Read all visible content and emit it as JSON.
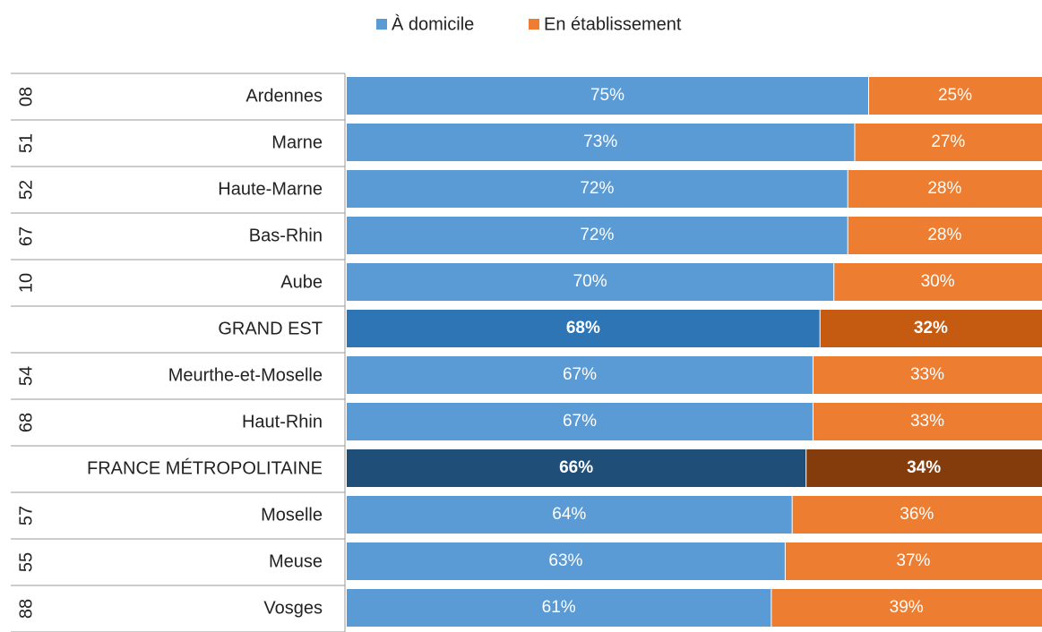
{
  "chart_data": {
    "type": "stacked-bar-horizontal",
    "categories": [
      "Ardennes",
      "Marne",
      "Haute-Marne",
      "Bas-Rhin",
      "Aube",
      "GRAND EST",
      "Meurthe-et-Moselle",
      "Haut-Rhin",
      "FRANCE MÉTROPOLITAINE",
      "Moselle",
      "Meuse",
      "Vosges"
    ],
    "codes": [
      "08",
      "51",
      "52",
      "67",
      "10",
      null,
      "54",
      "68",
      null,
      "57",
      "55",
      "88"
    ],
    "xlim": [
      0,
      100
    ],
    "series": [
      {
        "name": "À domicile",
        "color": "#5b9bd5",
        "point_colors": [
          "#5b9bd5",
          "#5b9bd5",
          "#5b9bd5",
          "#5b9bd5",
          "#5b9bd5",
          "#2e75b6",
          "#5b9bd5",
          "#5b9bd5",
          "#1f4e79",
          "#5b9bd5",
          "#5b9bd5",
          "#5b9bd5"
        ],
        "values": [
          75,
          73,
          72,
          72,
          70,
          68,
          67,
          67,
          66,
          64,
          63,
          61
        ],
        "value_labels": [
          "75%",
          "73%",
          "72%",
          "72%",
          "70%",
          "68%",
          "67%",
          "67%",
          "66%",
          "64%",
          "63%",
          "61%"
        ]
      },
      {
        "name": "En établissement",
        "color": "#ed7d31",
        "point_colors": [
          "#ed7d31",
          "#ed7d31",
          "#ed7d31",
          "#ed7d31",
          "#ed7d31",
          "#c55a11",
          "#ed7d31",
          "#ed7d31",
          "#843c0c",
          "#ed7d31",
          "#ed7d31",
          "#ed7d31"
        ],
        "values": [
          25,
          27,
          28,
          28,
          30,
          32,
          33,
          33,
          34,
          36,
          37,
          39
        ],
        "value_labels": [
          "25%",
          "27%",
          "28%",
          "28%",
          "30%",
          "32%",
          "33%",
          "33%",
          "34%",
          "36%",
          "37%",
          "39%"
        ]
      }
    ],
    "legend": "top"
  }
}
